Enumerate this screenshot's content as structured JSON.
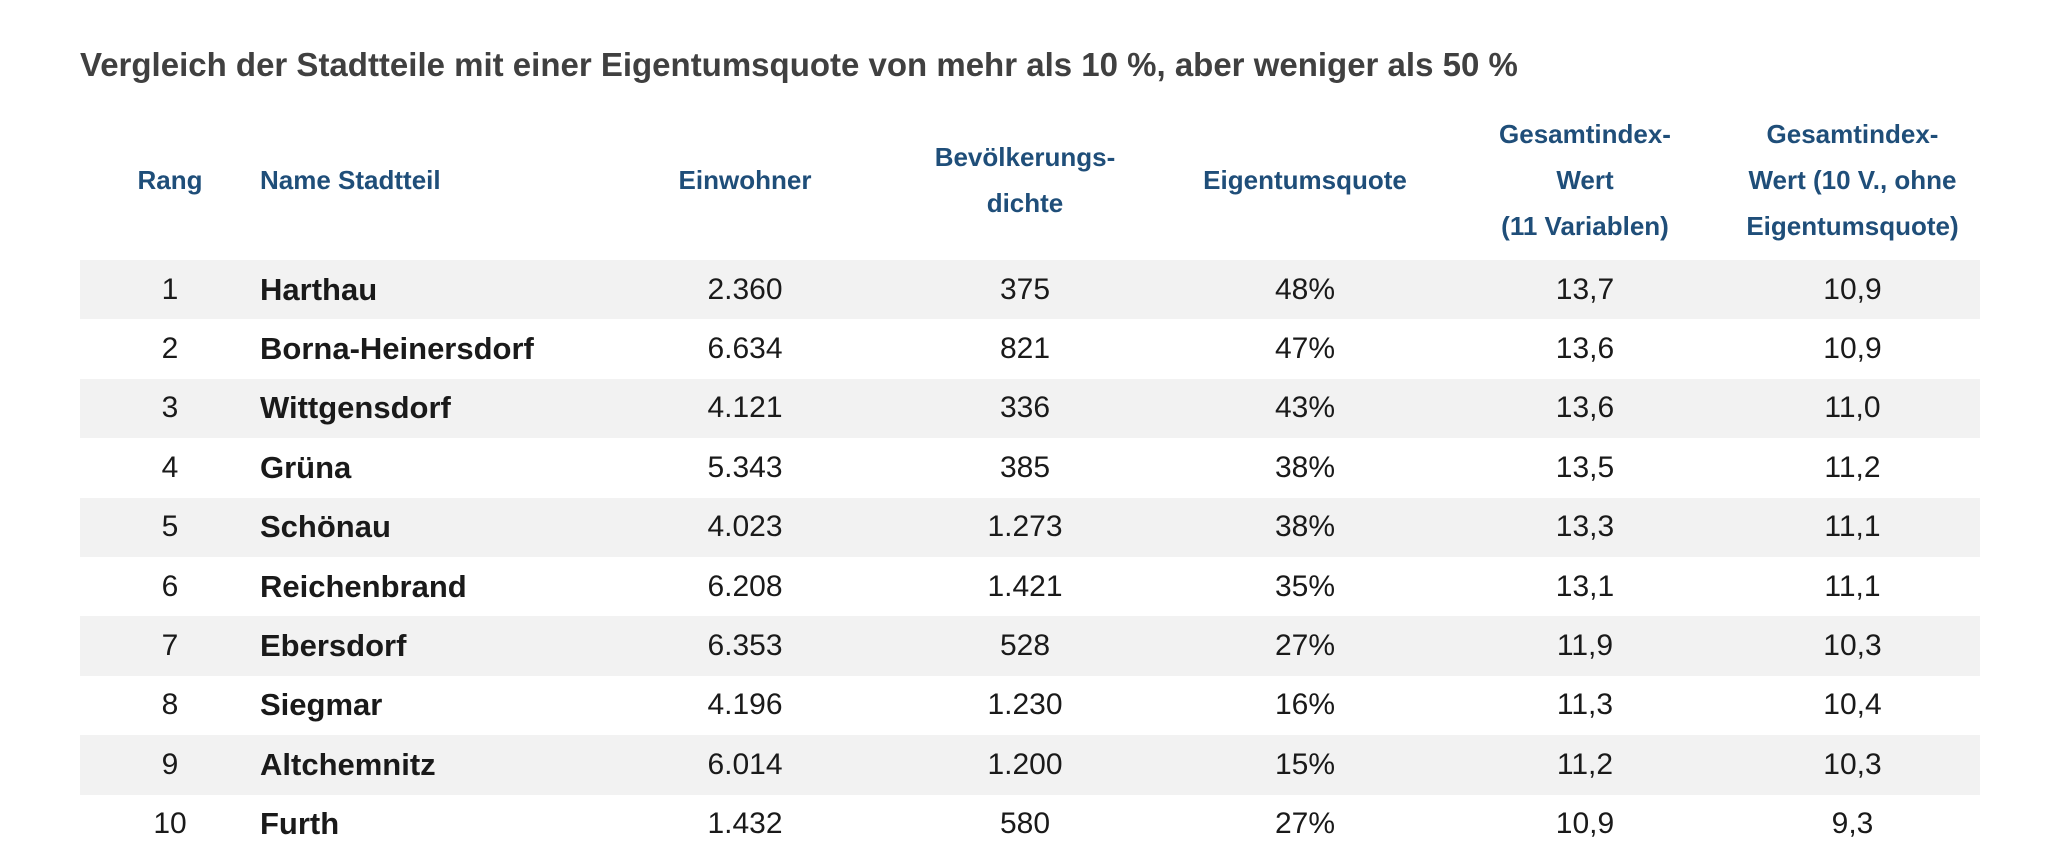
{
  "title": "Vergleich der Stadtteile mit einer Eigentumsquote von mehr als 10 %, aber weniger als 50 %",
  "headers": {
    "rang": [
      "Rang"
    ],
    "name": [
      "Name Stadtteil"
    ],
    "einwohner": [
      "Einwohner"
    ],
    "dichte": [
      "Bevölkerungs-",
      "dichte"
    ],
    "eigentumsquote": [
      "Eigentumsquote"
    ],
    "gesamtindex": [
      "Gesamtindex-",
      "Wert",
      "(11 Variablen)"
    ],
    "gesamtindex10": [
      "Gesamtindex-",
      "Wert (10 V., ohne",
      "Eigentumsquote)"
    ]
  },
  "rows": [
    {
      "rang": "1",
      "name": "Harthau",
      "einwohner": "2.360",
      "dichte": "375",
      "eigentumsquote": "48%",
      "gesamtindex": "13,7",
      "gesamtindex10": "10,9"
    },
    {
      "rang": "2",
      "name": "Borna-Heinersdorf",
      "einwohner": "6.634",
      "dichte": "821",
      "eigentumsquote": "47%",
      "gesamtindex": "13,6",
      "gesamtindex10": "10,9"
    },
    {
      "rang": "3",
      "name": "Wittgensdorf",
      "einwohner": "4.121",
      "dichte": "336",
      "eigentumsquote": "43%",
      "gesamtindex": "13,6",
      "gesamtindex10": "11,0"
    },
    {
      "rang": "4",
      "name": "Grüna",
      "einwohner": "5.343",
      "dichte": "385",
      "eigentumsquote": "38%",
      "gesamtindex": "13,5",
      "gesamtindex10": "11,2"
    },
    {
      "rang": "5",
      "name": "Schönau",
      "einwohner": "4.023",
      "dichte": "1.273",
      "eigentumsquote": "38%",
      "gesamtindex": "13,3",
      "gesamtindex10": "11,1"
    },
    {
      "rang": "6",
      "name": "Reichenbrand",
      "einwohner": "6.208",
      "dichte": "1.421",
      "eigentumsquote": "35%",
      "gesamtindex": "13,1",
      "gesamtindex10": "11,1"
    },
    {
      "rang": "7",
      "name": "Ebersdorf",
      "einwohner": "6.353",
      "dichte": "528",
      "eigentumsquote": "27%",
      "gesamtindex": "11,9",
      "gesamtindex10": "10,3"
    },
    {
      "rang": "8",
      "name": "Siegmar",
      "einwohner": "4.196",
      "dichte": "1.230",
      "eigentumsquote": "16%",
      "gesamtindex": "11,3",
      "gesamtindex10": "10,4"
    },
    {
      "rang": "9",
      "name": "Altchemnitz",
      "einwohner": "6.014",
      "dichte": "1.200",
      "eigentumsquote": "15%",
      "gesamtindex": "11,2",
      "gesamtindex10": "10,3"
    },
    {
      "rang": "10",
      "name": "Furth",
      "einwohner": "1.432",
      "dichte": "580",
      "eigentumsquote": "27%",
      "gesamtindex": "10,9",
      "gesamtindex10": "9,3"
    }
  ],
  "colors": {
    "header_text": "#1f4e79",
    "title_text": "#404040",
    "stripe": "#f2f2f2"
  }
}
